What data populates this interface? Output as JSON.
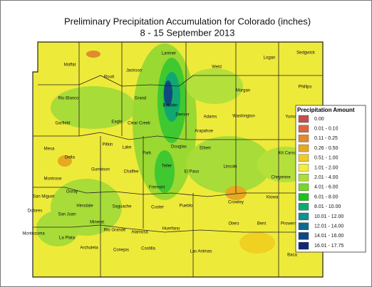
{
  "title": {
    "line1": "Preliminary Precipitation Accumulation for Colorado (inches)",
    "line2": "8 - 15 September 2013"
  },
  "counties": [
    "Moffat",
    "Routt",
    "Jackson",
    "Larimer",
    "Weld",
    "Logan",
    "Sedgwick",
    "Phillips",
    "Rio Blanco",
    "Grand",
    "Boulder",
    "Morgan",
    "Garfield",
    "Eagle",
    "Clear Creek",
    "Denver",
    "Adams",
    "Washington",
    "Yuma",
    "Arapahoe",
    "Douglas",
    "Elbert",
    "Mesa",
    "Delta",
    "Pitkin",
    "Lake",
    "Park",
    "Kit Carson",
    "Chaffee",
    "Teller",
    "El Paso",
    "Lincoln",
    "Gunnison",
    "Montrose",
    "Cheyenne",
    "Fremont",
    "Kiowa",
    "San Miguel",
    "Ouray",
    "Hinsdale",
    "Custer",
    "Pueblo",
    "Crowley",
    "Saguache",
    "San Juan",
    "Dolores",
    "Mineral",
    "Otero",
    "Bent",
    "Prowers",
    "Rio Grande",
    "Alamosa",
    "Huerfano",
    "Montezuma",
    "La Plata",
    "Archuleta",
    "Conejos",
    "Costilla",
    "Las Animas",
    "Baca"
  ],
  "legend": {
    "title": "Precipitation Amount",
    "items": [
      {
        "label": "0.00",
        "color": "#c0504d"
      },
      {
        "label": "0.01 - 0.10",
        "color": "#d8683c"
      },
      {
        "label": "0.11 - 0.25",
        "color": "#e08a2c"
      },
      {
        "label": "0.26 - 0.50",
        "color": "#e8a820"
      },
      {
        "label": "0.51 - 1.00",
        "color": "#f0cc20"
      },
      {
        "label": "1.01 - 2.00",
        "color": "#f2ee3a"
      },
      {
        "label": "2.01 - 4.00",
        "color": "#b0dc38"
      },
      {
        "label": "4.01 - 6.00",
        "color": "#78d430"
      },
      {
        "label": "6.01 - 8.00",
        "color": "#20c020"
      },
      {
        "label": "8.01 - 10.00",
        "color": "#10a870"
      },
      {
        "label": "10.01 - 12.00",
        "color": "#109090"
      },
      {
        "label": "12.01 - 14.00",
        "color": "#106890"
      },
      {
        "label": "14.01 - 16.00",
        "color": "#104880"
      },
      {
        "label": "16.01 - 17.75",
        "color": "#102870"
      }
    ]
  }
}
